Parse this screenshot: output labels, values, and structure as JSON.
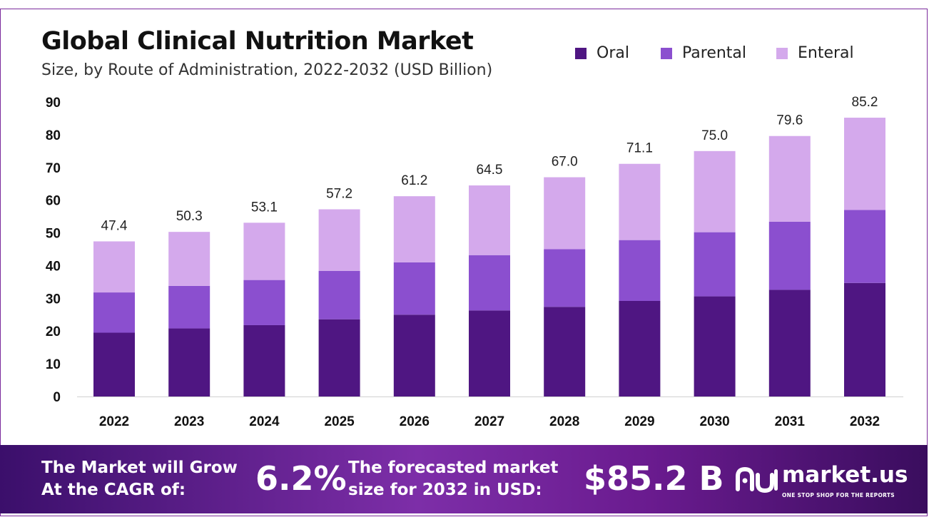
{
  "header": {
    "title": "Global Clinical Nutrition Market",
    "subtitle": "Size, by Route of Administration, 2022-2032 (USD Billion)"
  },
  "legend": [
    {
      "label": "Oral",
      "color": "#4f1682"
    },
    {
      "label": "Parental",
      "color": "#8b4fcf"
    },
    {
      "label": "Enteral",
      "color": "#d4a9ec"
    }
  ],
  "chart_data": {
    "type": "bar",
    "stacked": true,
    "categories": [
      "2022",
      "2023",
      "2024",
      "2025",
      "2026",
      "2027",
      "2028",
      "2029",
      "2030",
      "2031",
      "2032"
    ],
    "series": [
      {
        "name": "Oral",
        "color": "#4f1682",
        "values": [
          19.5,
          20.8,
          21.8,
          23.6,
          25.0,
          26.3,
          27.4,
          29.2,
          30.6,
          32.6,
          34.7
        ]
      },
      {
        "name": "Parental",
        "color": "#8b4fcf",
        "values": [
          12.3,
          13.0,
          13.8,
          14.8,
          16.0,
          16.9,
          17.6,
          18.6,
          19.6,
          20.8,
          22.3
        ]
      },
      {
        "name": "Enteral",
        "color": "#d4a9ec",
        "values": [
          15.6,
          16.5,
          17.5,
          18.8,
          20.2,
          21.3,
          22.0,
          23.3,
          24.8,
          26.2,
          28.2
        ]
      }
    ],
    "totals": [
      "47.4",
      "50.3",
      "53.1",
      "57.2",
      "61.2",
      "64.5",
      "67.0",
      "71.1",
      "75.0",
      "79.6",
      "85.2"
    ],
    "y_ticks": [
      "0",
      "10",
      "20",
      "30",
      "40",
      "50",
      "60",
      "70",
      "80",
      "90"
    ],
    "ylim": [
      0,
      90
    ],
    "grid": false,
    "legend_position": "top-right"
  },
  "footer": {
    "cagr_label_line1": "The Market will Grow",
    "cagr_label_line2": "At the CAGR of:",
    "cagr_value": "6.2%",
    "forecast_label_line1": "The forecasted market",
    "forecast_label_line2": "size for 2032 in USD:",
    "forecast_value": "$85.2 B"
  },
  "brand": {
    "name": "market.us",
    "tagline": "ONE STOP SHOP FOR THE REPORTS",
    "logo_icon": "market-us-logo-icon"
  }
}
